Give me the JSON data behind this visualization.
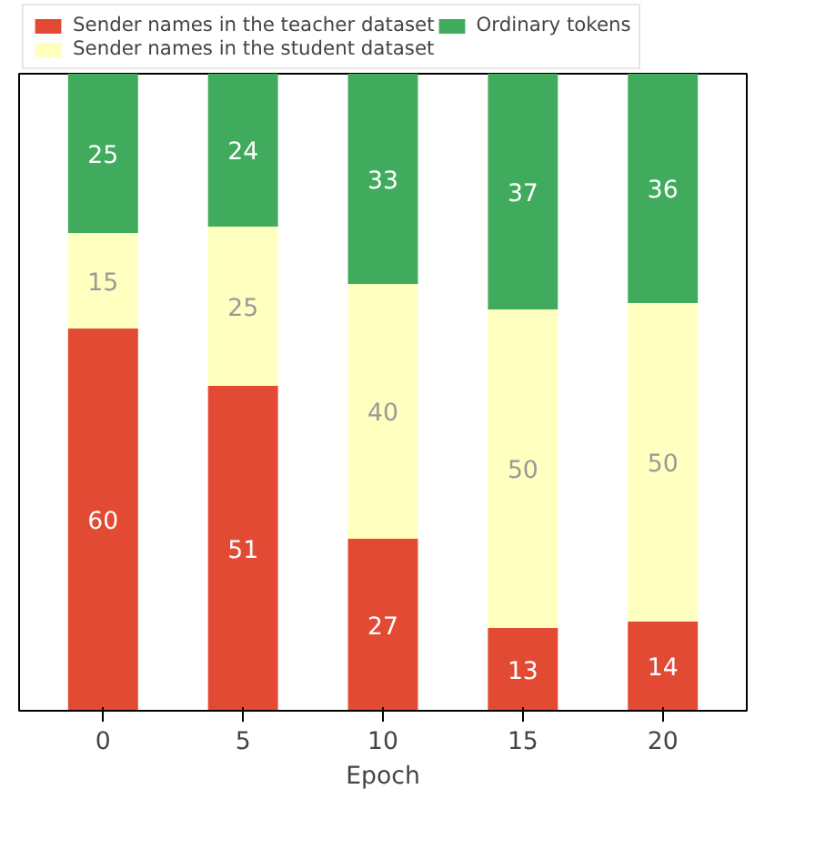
{
  "chart_data": {
    "type": "bar",
    "stacked": true,
    "xlabel": "Epoch",
    "categories": [
      "0",
      "5",
      "10",
      "15",
      "20"
    ],
    "series": [
      {
        "name": "Sender names in the teacher dataset",
        "color": "#e34a33",
        "values": [
          60,
          51,
          27,
          13,
          14
        ]
      },
      {
        "name": "Sender names in the student dataset",
        "color": "#ffffc0",
        "values": [
          15,
          25,
          40,
          50,
          50
        ]
      },
      {
        "name": "Ordinary tokens",
        "color": "#41ab5d",
        "values": [
          25,
          24,
          33,
          37,
          36
        ]
      }
    ],
    "ylim": [
      0,
      100
    ],
    "data_labels": true,
    "legend": "top",
    "grid": false
  }
}
